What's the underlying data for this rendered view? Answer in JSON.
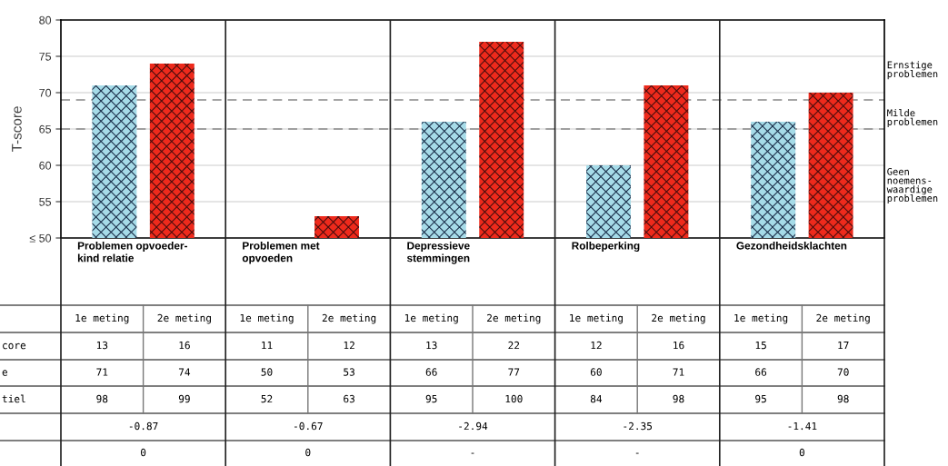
{
  "chart_data": {
    "type": "bar",
    "ylabel": "T-score",
    "categories": [
      "Problemen opvoeder-\nkind relatie",
      "Problemen met\nopvoeden",
      "Depressieve\nstemmingen",
      "Rolbeperking",
      "Gezondheidsklachten"
    ],
    "series": [
      {
        "color": "#a6dbe8",
        "values": [
          71,
          50,
          66,
          60,
          66
        ]
      },
      {
        "color": "#ee2a1c",
        "values": [
          74,
          53,
          77,
          71,
          70
        ]
      }
    ],
    "ylim": [
      50,
      80
    ],
    "yticks": [
      {
        "value": 50,
        "label": "≤ 50"
      },
      55,
      60,
      65,
      70,
      75,
      80
    ],
    "grid": "y",
    "ref_lines": [
      {
        "axis": "y",
        "value": 69,
        "color": "#888888",
        "line_style": "dashed"
      },
      {
        "axis": "y",
        "value": 65,
        "color": "#888888",
        "line_style": "dashed"
      }
    ],
    "annotations": [
      "Ernstige\nproblemen",
      "Milde\nproblemen",
      "Geen\nnoemens-\nwaardige\nproblemen",
      "1e meting",
      "2e meting",
      "1e meting",
      "2e meting",
      "1e meting",
      "2e meting",
      "1e meting",
      "2e meting",
      "1e meting",
      "2e meting",
      "core",
      "13",
      "16",
      "11",
      "12",
      "13",
      "22",
      "12",
      "16",
      "15",
      "17",
      "e",
      "71",
      "74",
      "50",
      "53",
      "66",
      "77",
      "60",
      "71",
      "66",
      "70",
      "tiel",
      "98",
      "99",
      "52",
      "63",
      "95",
      "100",
      "84",
      "98",
      "95",
      "98",
      "-0.87",
      "-0.67",
      "-2.94",
      "-2.35",
      "-1.41",
      "0",
      "0",
      "-",
      "-",
      "0"
    ]
  }
}
